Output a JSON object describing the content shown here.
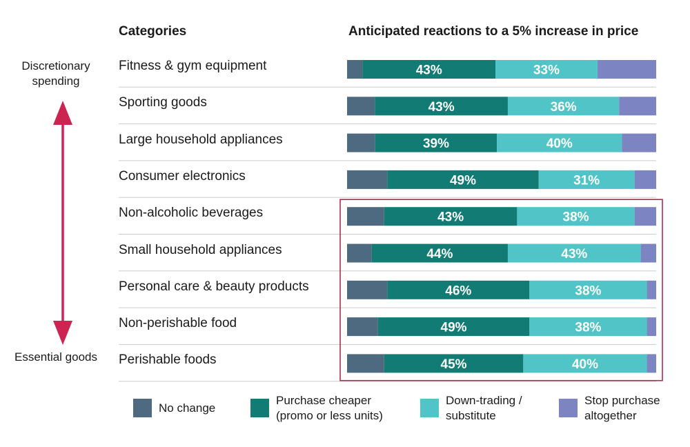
{
  "headers": {
    "categories": "Categories",
    "reactions": "Anticipated reactions to a 5% increase in price"
  },
  "side_labels": {
    "top": "Discretionary spending",
    "bottom": "Essential goods"
  },
  "colors": {
    "no_change": "#4e6a80",
    "purchase_cheaper": "#127c74",
    "down_trading": "#50c4c6",
    "stop_purchase": "#7d84c2",
    "arrow": "#cc2552",
    "highlight_box": "#b22a4e",
    "divider": "#cccccc"
  },
  "chart_data": {
    "type": "bar",
    "orientation": "horizontal",
    "stacked": true,
    "normalized": true,
    "categories": [
      "Fitness & gym equipment",
      "Sporting goods",
      "Large household appliances",
      "Consumer electronics",
      "Non-alcoholic beverages",
      "Small household appliances",
      "Personal care & beauty products",
      "Non-perishable food",
      "Perishable foods"
    ],
    "series": [
      {
        "name": "No change",
        "color": "#4e6a80",
        "values": [
          5,
          9,
          9,
          13,
          12,
          8,
          13,
          10,
          12
        ]
      },
      {
        "name": "Purchase cheaper\n(promo or less units)",
        "color": "#127c74",
        "values": [
          43,
          43,
          39,
          49,
          43,
          44,
          46,
          49,
          45
        ]
      },
      {
        "name": "Down-trading /\nsubstitute",
        "color": "#50c4c6",
        "values": [
          33,
          36,
          40,
          31,
          38,
          43,
          38,
          38,
          40
        ]
      },
      {
        "name": "Stop purchase\naltogether",
        "color": "#7d84c2",
        "values": [
          19,
          12,
          11,
          7,
          7,
          5,
          3,
          3,
          3
        ]
      }
    ],
    "data_labels": [
      [
        "",
        "43%",
        "33%",
        ""
      ],
      [
        "",
        "43%",
        "36%",
        ""
      ],
      [
        "",
        "39%",
        "40%",
        ""
      ],
      [
        "",
        "49%",
        "31%",
        ""
      ],
      [
        "",
        "43%",
        "38%",
        ""
      ],
      [
        "",
        "44%",
        "43%",
        ""
      ],
      [
        "",
        "46%",
        "38%",
        ""
      ],
      [
        "",
        "49%",
        "38%",
        ""
      ],
      [
        "",
        "45%",
        "40%",
        ""
      ]
    ],
    "xlim": [
      0,
      100
    ],
    "highlighted_categories": [
      "Non-alcoholic beverages",
      "Small household appliances",
      "Personal care & beauty products",
      "Non-perishable food",
      "Perishable foods"
    ],
    "legend_position": "bottom"
  }
}
